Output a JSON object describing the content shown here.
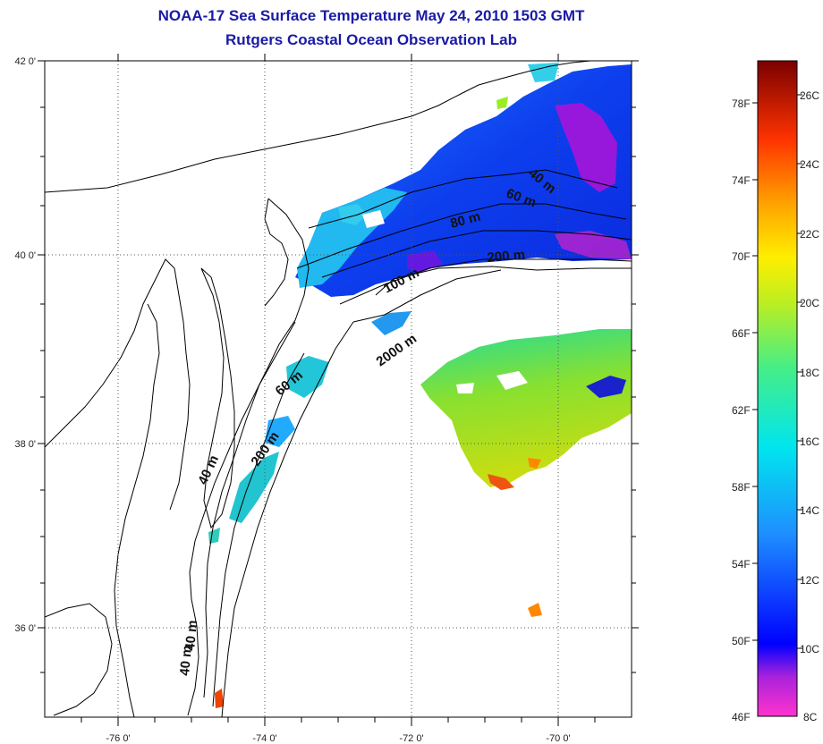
{
  "title": "NOAA-17 Sea Surface Temperature May 24, 2010 1503 GMT",
  "subtitle": "Rutgers Coastal Ocean Observation Lab",
  "lat_labels": [
    "42 0'",
    "40 0'",
    "38 0'",
    "36 0'"
  ],
  "lon_labels": [
    "-76 0'",
    "-74 0'",
    "-72 0'",
    "-70 0'"
  ],
  "depth_labels": {
    "nj_40": "40 m",
    "nj_60": "60 m",
    "nj_80": "80 m",
    "nj_200": "200 m",
    "nj_100": "100 m",
    "nj_2000": "2000 m",
    "md_60": "60 m",
    "md_200": "200 m",
    "md_40": "40 m",
    "nc_40a": "40 m",
    "nc_40b": "40 m"
  },
  "colorbar": {
    "fahrenheit": [
      "78F",
      "74F",
      "70F",
      "66F",
      "62F",
      "58F",
      "54F",
      "50F",
      "46F"
    ],
    "celsius": [
      "26C",
      "24C",
      "22C",
      "20C",
      "18C",
      "16C",
      "14C",
      "12C",
      "10C",
      "8C"
    ]
  },
  "colors": {
    "title": "#1a1aa6",
    "frame": "#000000",
    "grid": "#555555"
  }
}
